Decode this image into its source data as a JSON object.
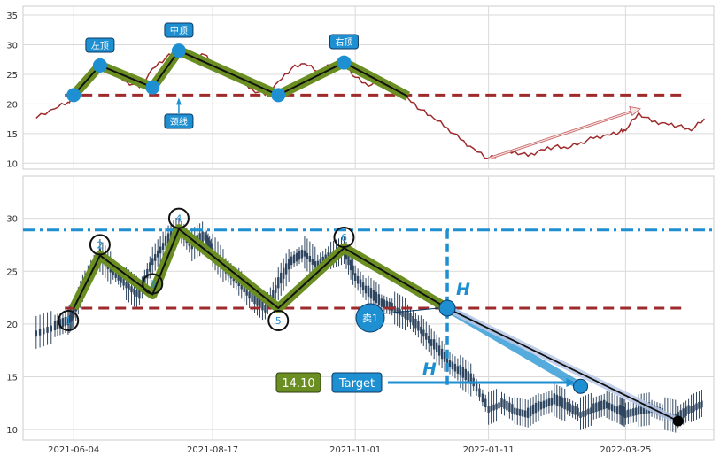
{
  "chart_data": [
    {
      "type": "line",
      "title": "",
      "xlabel": "",
      "ylabel": "",
      "ylim": [
        9,
        36.5
      ],
      "yticks": [
        10,
        15,
        20,
        25,
        30,
        35
      ],
      "grid": true,
      "series": [
        {
          "color": "#9e2a2b",
          "x": [
            "2021-05-15",
            "2021-05-25",
            "2021-06-01",
            "2021-06-04",
            "2021-06-10",
            "2021-06-18",
            "2021-06-25",
            "2021-07-02",
            "2021-07-09",
            "2021-07-16",
            "2021-07-23",
            "2021-07-30",
            "2021-08-06",
            "2021-08-13",
            "2021-08-17",
            "2021-08-24",
            "2021-08-31",
            "2021-09-07",
            "2021-09-14",
            "2021-09-21",
            "2021-09-28",
            "2021-10-05",
            "2021-10-12",
            "2021-10-19",
            "2021-10-26",
            "2021-11-01",
            "2021-11-08",
            "2021-11-15",
            "2021-11-22",
            "2021-11-29",
            "2021-12-06",
            "2021-12-13",
            "2021-12-20",
            "2021-12-27",
            "2022-01-03",
            "2022-01-11",
            "2022-01-18",
            "2022-01-25",
            "2022-02-01",
            "2022-02-08",
            "2022-02-15",
            "2022-02-22",
            "2022-03-01",
            "2022-03-08",
            "2022-03-15",
            "2022-03-22",
            "2022-03-25",
            "2022-04-01",
            "2022-04-08",
            "2022-04-15",
            "2022-04-22",
            "2022-04-29",
            "2022-05-06"
          ],
          "values": [
            17.6,
            19.2,
            20.3,
            21.5,
            24.0,
            26.2,
            25.0,
            23.8,
            22.8,
            26.0,
            27.8,
            28.9,
            27.5,
            28.3,
            27.0,
            25.2,
            24.0,
            22.5,
            21.5,
            23.8,
            26.0,
            26.8,
            25.5,
            26.5,
            27.0,
            24.5,
            23.0,
            24.0,
            22.0,
            21.0,
            19.0,
            17.5,
            16.0,
            14.0,
            12.5,
            10.8,
            11.5,
            12.0,
            11.2,
            12.3,
            12.8,
            12.5,
            13.5,
            14.2,
            14.8,
            15.3,
            15.5,
            18.5,
            17.0,
            16.8,
            16.3,
            15.5,
            17.5
          ]
        }
      ],
      "markers": [
        {
          "x": "2021-06-04",
          "y": 21.5
        },
        {
          "x": "2021-06-18",
          "y": 26.5
        },
        {
          "x": "2021-07-16",
          "y": 22.8
        },
        {
          "x": "2021-07-30",
          "y": 29.0
        },
        {
          "x": "2021-09-21",
          "y": 21.5
        },
        {
          "x": "2021-10-26",
          "y": 27.0
        },
        {
          "x": "2021-11-29",
          "y": 21.3
        }
      ],
      "annotations": [
        "左顶",
        "中顶",
        "右顶",
        "颈线"
      ],
      "neckline": 21.5
    },
    {
      "type": "candlestick",
      "title": "",
      "xlabel": "",
      "ylabel": "",
      "ylim": [
        9,
        34
      ],
      "yticks": [
        10,
        15,
        20,
        25,
        30
      ],
      "xticks": [
        "2021-06-04",
        "2021-08-17",
        "2021-11-01",
        "2022-01-11",
        "2022-03-25"
      ],
      "grid": true,
      "candle_dates": [
        "2021-05-15",
        "2021-05-25",
        "2021-06-01",
        "2021-06-04",
        "2021-06-10",
        "2021-06-18",
        "2021-06-25",
        "2021-07-02",
        "2021-07-09",
        "2021-07-16",
        "2021-07-23",
        "2021-07-30",
        "2021-08-06",
        "2021-08-13",
        "2021-08-17",
        "2021-08-24",
        "2021-08-31",
        "2021-09-07",
        "2021-09-14",
        "2021-09-21",
        "2021-09-28",
        "2021-10-05",
        "2021-10-12",
        "2021-10-19",
        "2021-10-26",
        "2021-11-01",
        "2021-11-08",
        "2021-11-15",
        "2021-11-22",
        "2021-11-29",
        "2021-12-06",
        "2021-12-13",
        "2021-12-20",
        "2021-12-27",
        "2022-01-03",
        "2022-01-11",
        "2022-01-18",
        "2022-01-25",
        "2022-02-01",
        "2022-02-08",
        "2022-02-15",
        "2022-02-22",
        "2022-03-01",
        "2022-03-08",
        "2022-03-15",
        "2022-03-22",
        "2022-03-25",
        "2022-04-01",
        "2022-04-08",
        "2022-04-15",
        "2022-04-22",
        "2022-04-29",
        "2022-05-06"
      ],
      "candle_close": [
        19.2,
        19.8,
        20.3,
        21.0,
        24.0,
        26.5,
        25.0,
        23.8,
        22.8,
        26.0,
        27.8,
        29.0,
        27.5,
        28.3,
        27.0,
        25.2,
        24.0,
        22.5,
        21.5,
        23.8,
        26.0,
        26.8,
        25.5,
        26.5,
        27.0,
        24.5,
        23.0,
        22.0,
        21.5,
        20.8,
        19.5,
        18.0,
        16.5,
        15.5,
        14.5,
        12.0,
        12.5,
        11.8,
        11.5,
        12.3,
        12.8,
        12.2,
        11.5,
        12.0,
        12.4,
        11.8,
        11.5,
        11.8,
        12.0,
        11.5,
        11.2,
        12.0,
        12.6
      ],
      "pattern_points": [
        {
          "label": "1",
          "x": "2021-06-04",
          "y": 21.5
        },
        {
          "label": "2",
          "x": "2021-06-18",
          "y": 26.5
        },
        {
          "label": "3",
          "x": "2021-07-16",
          "y": 22.8
        },
        {
          "label": "4",
          "x": "2021-07-30",
          "y": 29.0
        },
        {
          "label": "5",
          "x": "2021-09-21",
          "y": 21.5
        },
        {
          "label": "6",
          "x": "2021-10-26",
          "y": 27.2
        },
        {
          "x": "2021-12-20",
          "y": 21.5
        },
        {
          "x": "2022-03-01",
          "y": 14.1
        },
        {
          "x": "2022-04-22",
          "y": 10.8
        }
      ],
      "resistance": 28.9,
      "neckline": 21.5,
      "sell_label": "卖1",
      "h_label": "H",
      "target_value": "14.10",
      "target_label": "Target"
    }
  ],
  "colors": {
    "price_line": "#9e2a2b",
    "neckline": "#9e2a2b",
    "marker": "#1e8fd1",
    "pattern_fill": "#6b8e23",
    "label_box": "#1e8fd1",
    "target_box": "#6b8e23",
    "resistance": "#1e8fd1",
    "candle": "#2f4660",
    "grid": "#d9d9d9"
  }
}
